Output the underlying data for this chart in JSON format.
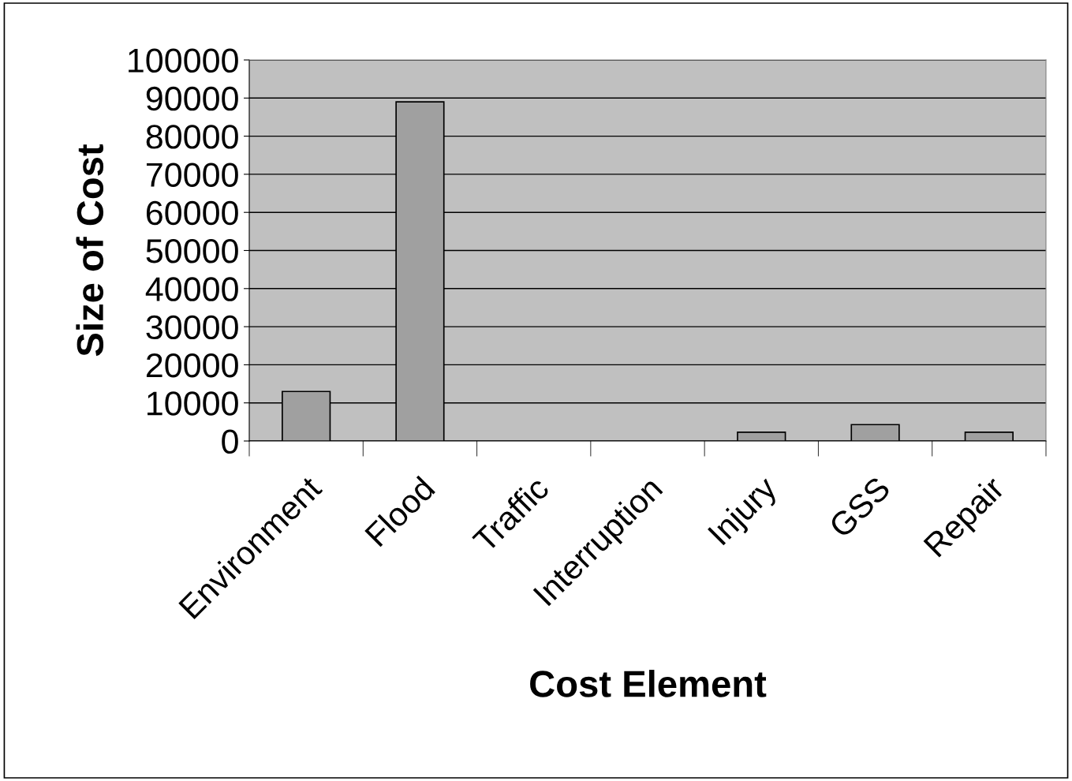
{
  "chart_data": {
    "type": "bar",
    "xlabel": "Cost Element",
    "ylabel": "Size of Cost",
    "categories": [
      "Environment",
      "Flood",
      "Traffic",
      "Interruption",
      "Injury",
      "GSS",
      "Repair"
    ],
    "values": [
      13000,
      89000,
      0,
      0,
      2300,
      4300,
      2300
    ],
    "color": "#a0a0a0",
    "ylim": [
      0,
      100000
    ],
    "yticks": [
      0,
      10000,
      20000,
      30000,
      40000,
      50000,
      60000,
      70000,
      80000,
      90000,
      100000
    ],
    "grid": "y",
    "legend": false
  }
}
